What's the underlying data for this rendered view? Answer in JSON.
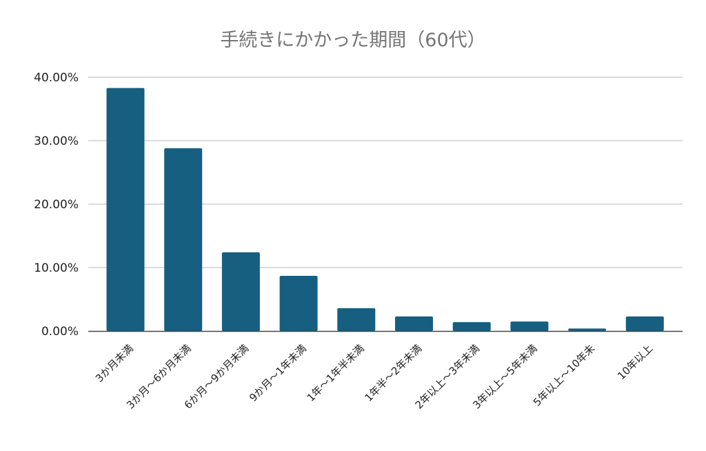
{
  "chart_data": {
    "type": "bar",
    "title": "手続きにかかった期間（60代）",
    "xlabel": "",
    "ylabel": "",
    "ylim": [
      0,
      40
    ],
    "yticks": [
      "0.00%",
      "10.00%",
      "20.00%",
      "30.00%",
      "40.00%"
    ],
    "grid": true,
    "categories": [
      "3か月未満",
      "3か月～6か月未満",
      "6か月～9か月未満",
      "9か月～1年未満",
      "1年～1年半未満",
      "1年半～2年未満",
      "2年以上～3年未満",
      "3年以上～5年未満",
      "5年以上～10年未",
      "10年以上"
    ],
    "values": [
      38.3,
      28.8,
      12.4,
      8.7,
      3.6,
      2.3,
      1.4,
      1.5,
      0.4,
      2.3
    ],
    "unit": "%",
    "bar_color": "#165f80"
  }
}
